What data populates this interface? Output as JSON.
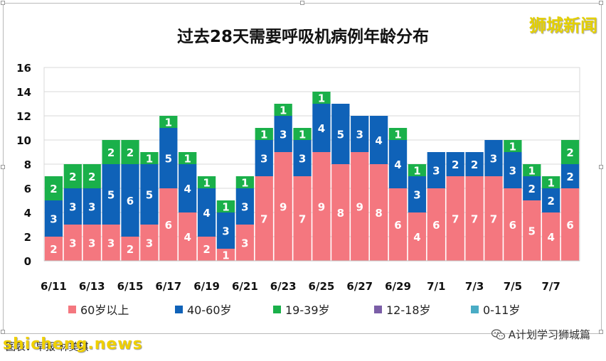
{
  "chart_data": {
    "type": "bar",
    "stacked": true,
    "title": "过去28天需要呼吸机病例年龄分布",
    "categories": [
      "6/11",
      "6/12",
      "6/13",
      "6/14",
      "6/15",
      "6/16",
      "6/17",
      "6/18",
      "6/19",
      "6/20",
      "6/21",
      "6/22",
      "6/23",
      "6/24",
      "6/25",
      "6/26",
      "6/27",
      "6/28",
      "6/29",
      "6/30",
      "7/1",
      "7/2",
      "7/3",
      "7/4",
      "7/5",
      "7/6",
      "7/7",
      "7/8"
    ],
    "tick_labels": [
      "6/11",
      "",
      "6/13",
      "",
      "6/15",
      "",
      "6/17",
      "",
      "6/19",
      "",
      "6/21",
      "",
      "6/23",
      "",
      "6/25",
      "",
      "6/27",
      "",
      "6/29",
      "",
      "7/1",
      "",
      "7/3",
      "",
      "7/5",
      "",
      "7/7",
      ""
    ],
    "series": [
      {
        "name": "60岁以上",
        "color": "#f4777f",
        "values": [
          2,
          3,
          3,
          3,
          2,
          3,
          6,
          4,
          2,
          1,
          3,
          7,
          9,
          7,
          9,
          8,
          9,
          8,
          6,
          4,
          6,
          7,
          7,
          7,
          6,
          5,
          4,
          6
        ]
      },
      {
        "name": "40-60岁",
        "color": "#0f62b8",
        "values": [
          3,
          3,
          3,
          5,
          6,
          5,
          5,
          4,
          4,
          3,
          3,
          3,
          3,
          3,
          4,
          5,
          3,
          4,
          4,
          3,
          3,
          2,
          2,
          3,
          3,
          2,
          2,
          2
        ]
      },
      {
        "name": "19-39岁",
        "color": "#1ab04a",
        "values": [
          2,
          2,
          2,
          2,
          2,
          1,
          1,
          1,
          1,
          1,
          1,
          1,
          1,
          1,
          1,
          0,
          0,
          0,
          1,
          1,
          0,
          0,
          0,
          0,
          1,
          1,
          1,
          2
        ]
      },
      {
        "name": "12-18岁",
        "color": "#7b5ea7",
        "values": [
          0,
          0,
          0,
          0,
          0,
          0,
          0,
          0,
          0,
          0,
          0,
          0,
          0,
          0,
          0,
          0,
          0,
          0,
          0,
          0,
          0,
          0,
          0,
          0,
          0,
          0,
          0,
          0
        ]
      },
      {
        "name": "0-11岁",
        "color": "#4aacc5",
        "values": [
          0,
          0,
          0,
          0,
          0,
          0,
          0,
          0,
          0,
          0,
          0,
          0,
          0,
          0,
          0,
          0,
          0,
          0,
          0,
          0,
          0,
          0,
          0,
          0,
          0,
          0,
          0,
          0
        ]
      }
    ],
    "ylim": [
      0,
      16
    ],
    "yticks": [
      0,
      2,
      4,
      6,
      8,
      10,
      12,
      14,
      16
    ],
    "grid": true,
    "legend_position": "bottom"
  },
  "watermark": {
    "brand": "狮城新闻",
    "caption": "图表：早报 林美琪",
    "site": "shicheng.news",
    "wechat": "A计划学习狮城篇"
  }
}
